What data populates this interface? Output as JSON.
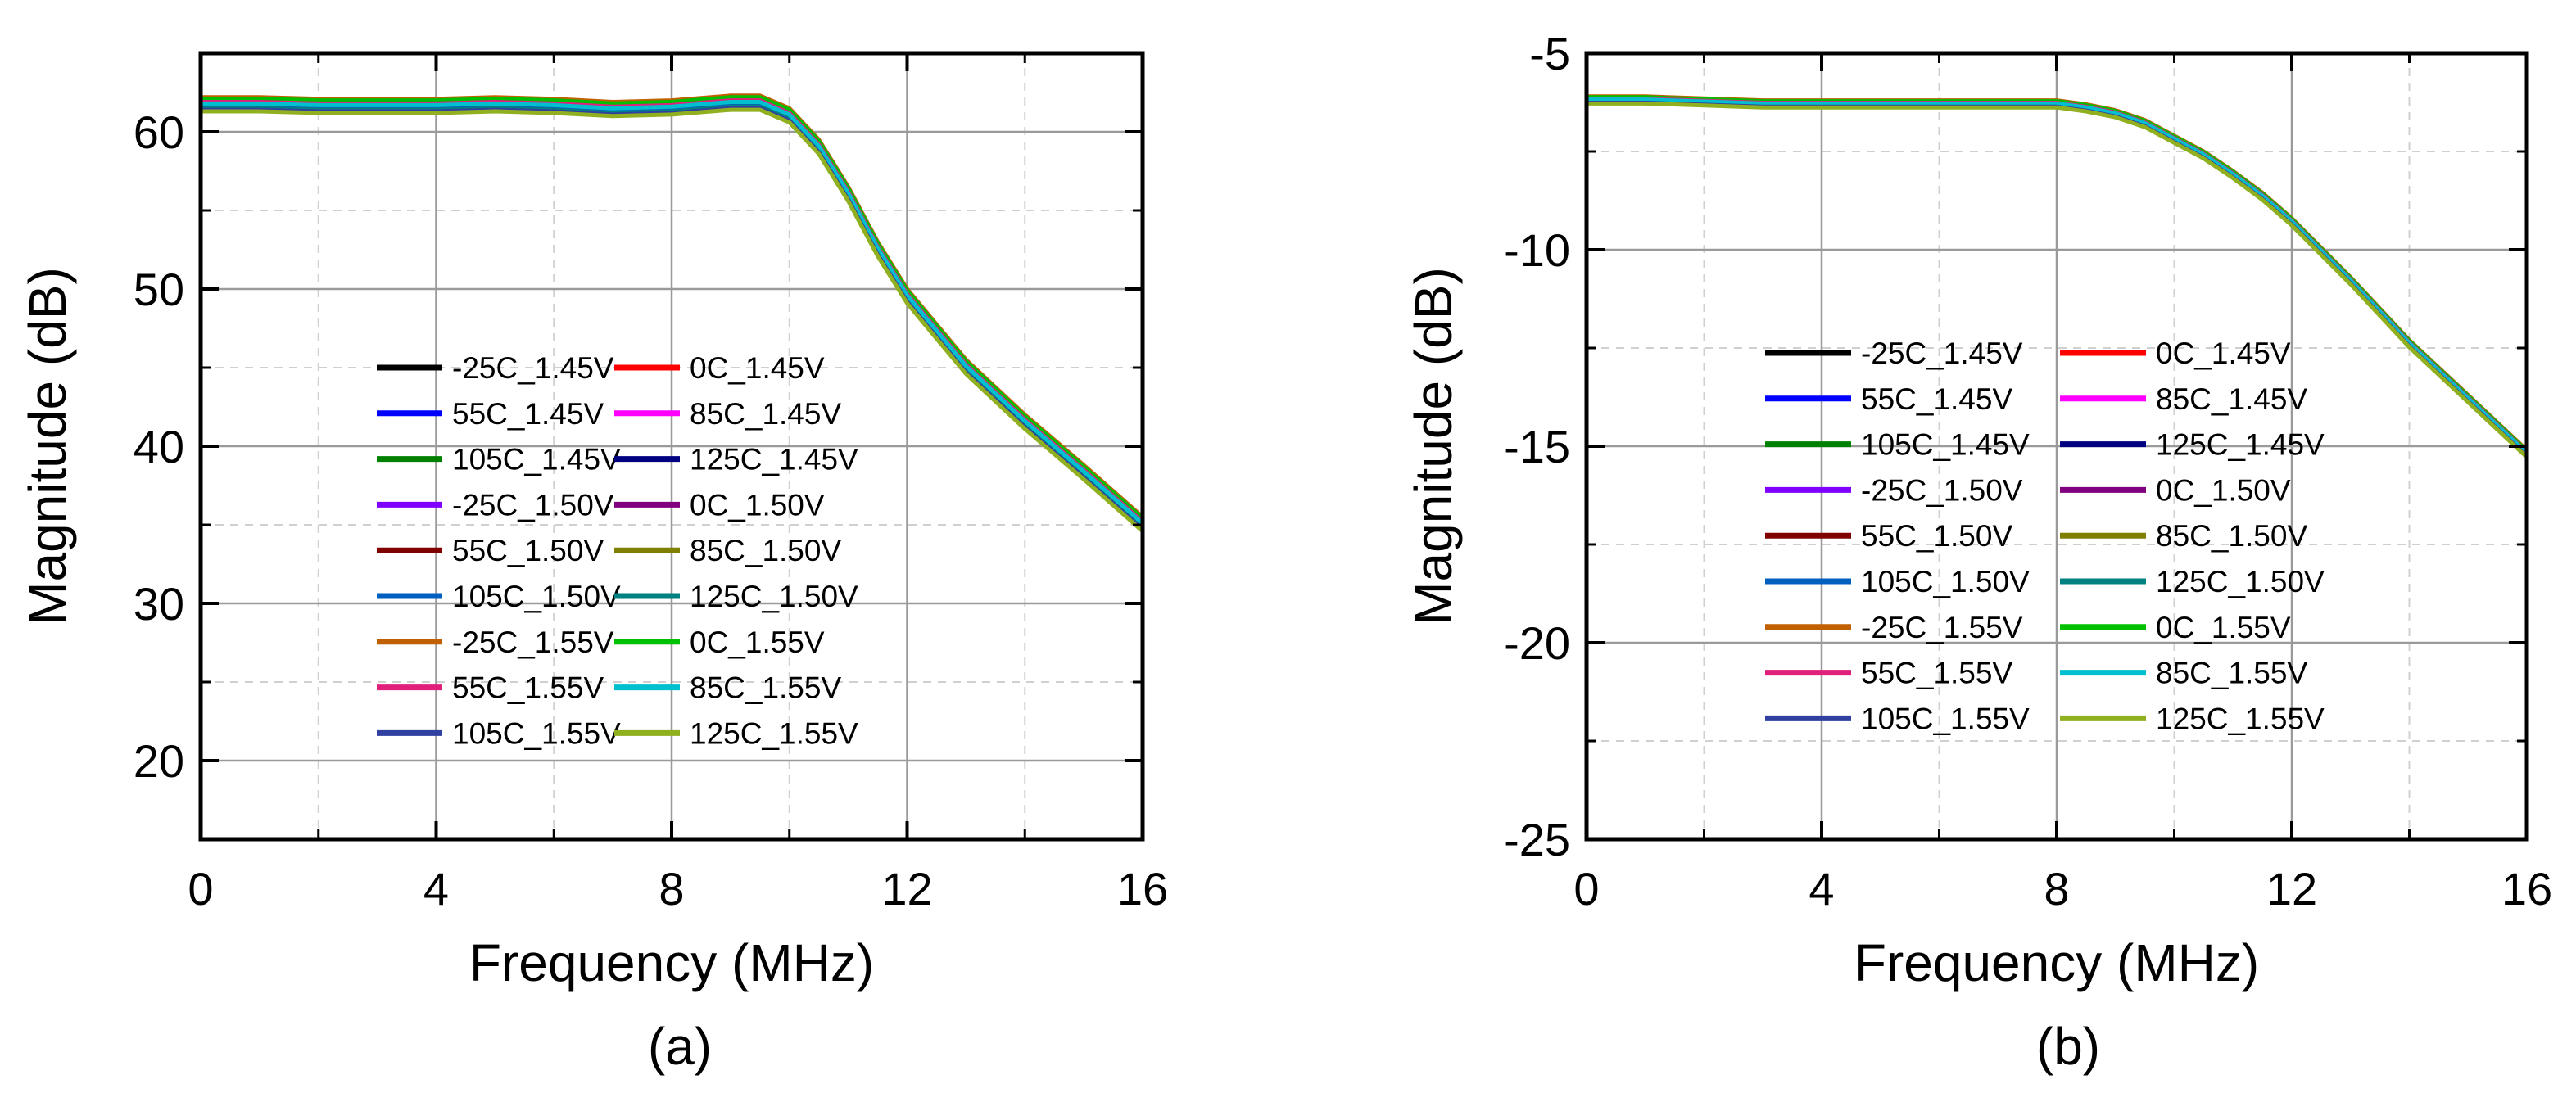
{
  "chart_data": [
    {
      "type": "line",
      "panel_label": "(a)",
      "title": "",
      "xlabel": "Frequency (MHz)",
      "ylabel": "Magnitude (dB)",
      "xlim": [
        0,
        16
      ],
      "ylim": [
        15,
        65
      ],
      "xticks": [
        0,
        4,
        8,
        12,
        16
      ],
      "yticks": [
        20,
        30,
        40,
        50,
        60
      ],
      "grid": true,
      "legend_position": "center",
      "base_curve": {
        "x": [
          0,
          1,
          2,
          3,
          4,
          5,
          6,
          7,
          8,
          9,
          9.5,
          10,
          10.5,
          11,
          11.5,
          12,
          13,
          14,
          15,
          16
        ],
        "y": [
          61.7,
          61.7,
          61.6,
          61.6,
          61.6,
          61.7,
          61.6,
          61.4,
          61.5,
          61.8,
          61.8,
          61.0,
          59.0,
          56.0,
          52.5,
          49.5,
          45.0,
          41.5,
          38.3,
          35.0
        ]
      },
      "series": [
        {
          "name": "-25C_1.45V",
          "color": "#000000",
          "offset": 0.3
        },
        {
          "name": "0C_1.45V",
          "color": "#ff0000",
          "offset": 0.2
        },
        {
          "name": "55C_1.45V",
          "color": "#0000ff",
          "offset": 0.0
        },
        {
          "name": "85C_1.45V",
          "color": "#ff00ff",
          "offset": -0.1
        },
        {
          "name": "105C_1.45V",
          "color": "#008000",
          "offset": -0.2
        },
        {
          "name": "125C_1.45V",
          "color": "#000080",
          "offset": -0.3
        },
        {
          "name": "-25C_1.50V",
          "color": "#8000ff",
          "offset": 0.4
        },
        {
          "name": "0C_1.50V",
          "color": "#800080",
          "offset": 0.3
        },
        {
          "name": "55C_1.50V",
          "color": "#800000",
          "offset": 0.1
        },
        {
          "name": "85C_1.50V",
          "color": "#808000",
          "offset": 0.0
        },
        {
          "name": "105C_1.50V",
          "color": "#0060c0",
          "offset": -0.1
        },
        {
          "name": "125C_1.50V",
          "color": "#008080",
          "offset": -0.2
        },
        {
          "name": "-25C_1.55V",
          "color": "#c06000",
          "offset": 0.5
        },
        {
          "name": "0C_1.55V",
          "color": "#00c000",
          "offset": 0.4
        },
        {
          "name": "55C_1.55V",
          "color": "#e0207a",
          "offset": 0.2
        },
        {
          "name": "85C_1.55V",
          "color": "#00c0d0",
          "offset": 0.1
        },
        {
          "name": "105C_1.55V",
          "color": "#3040a0",
          "offset": -0.3
        },
        {
          "name": "125C_1.55V",
          "color": "#90b020",
          "offset": -0.4
        }
      ]
    },
    {
      "type": "line",
      "panel_label": "(b)",
      "title": "",
      "xlabel": "Frequency (MHz)",
      "ylabel": "Magnitude (dB)",
      "xlim": [
        0,
        16
      ],
      "ylim": [
        -25,
        -5
      ],
      "xticks": [
        0,
        4,
        8,
        12,
        16
      ],
      "yticks": [
        -25,
        -20,
        -15,
        -10,
        -5
      ],
      "grid": true,
      "legend_position": "center",
      "base_curve": {
        "x": [
          0,
          1,
          2,
          3,
          4,
          5,
          6,
          7,
          8,
          8.5,
          9,
          9.5,
          10,
          10.5,
          11,
          11.5,
          12,
          13,
          14,
          15,
          16
        ],
        "y": [
          -6.2,
          -6.2,
          -6.25,
          -6.3,
          -6.3,
          -6.3,
          -6.3,
          -6.3,
          -6.3,
          -6.4,
          -6.55,
          -6.8,
          -7.2,
          -7.6,
          -8.1,
          -8.65,
          -9.3,
          -10.8,
          -12.4,
          -13.8,
          -15.2
        ]
      },
      "series": [
        {
          "name": "-25C_1.45V",
          "color": "#000000",
          "offset": 0.06
        },
        {
          "name": "0C_1.45V",
          "color": "#ff0000",
          "offset": 0.04
        },
        {
          "name": "55C_1.45V",
          "color": "#0000ff",
          "offset": 0.0
        },
        {
          "name": "85C_1.45V",
          "color": "#ff00ff",
          "offset": -0.02
        },
        {
          "name": "105C_1.45V",
          "color": "#008000",
          "offset": -0.04
        },
        {
          "name": "125C_1.45V",
          "color": "#000080",
          "offset": -0.06
        },
        {
          "name": "-25C_1.50V",
          "color": "#8000ff",
          "offset": 0.08
        },
        {
          "name": "0C_1.50V",
          "color": "#800080",
          "offset": 0.06
        },
        {
          "name": "55C_1.50V",
          "color": "#800000",
          "offset": 0.02
        },
        {
          "name": "85C_1.50V",
          "color": "#808000",
          "offset": 0.0
        },
        {
          "name": "105C_1.50V",
          "color": "#0060c0",
          "offset": -0.02
        },
        {
          "name": "125C_1.50V",
          "color": "#008080",
          "offset": -0.04
        },
        {
          "name": "-25C_1.55V",
          "color": "#c06000",
          "offset": 0.1
        },
        {
          "name": "0C_1.55V",
          "color": "#00c000",
          "offset": 0.08
        },
        {
          "name": "55C_1.55V",
          "color": "#e0207a",
          "offset": 0.04
        },
        {
          "name": "85C_1.55V",
          "color": "#00c0d0",
          "offset": 0.02
        },
        {
          "name": "105C_1.55V",
          "color": "#3040a0",
          "offset": -0.06
        },
        {
          "name": "125C_1.55V",
          "color": "#90b020",
          "offset": -0.08
        }
      ]
    }
  ]
}
